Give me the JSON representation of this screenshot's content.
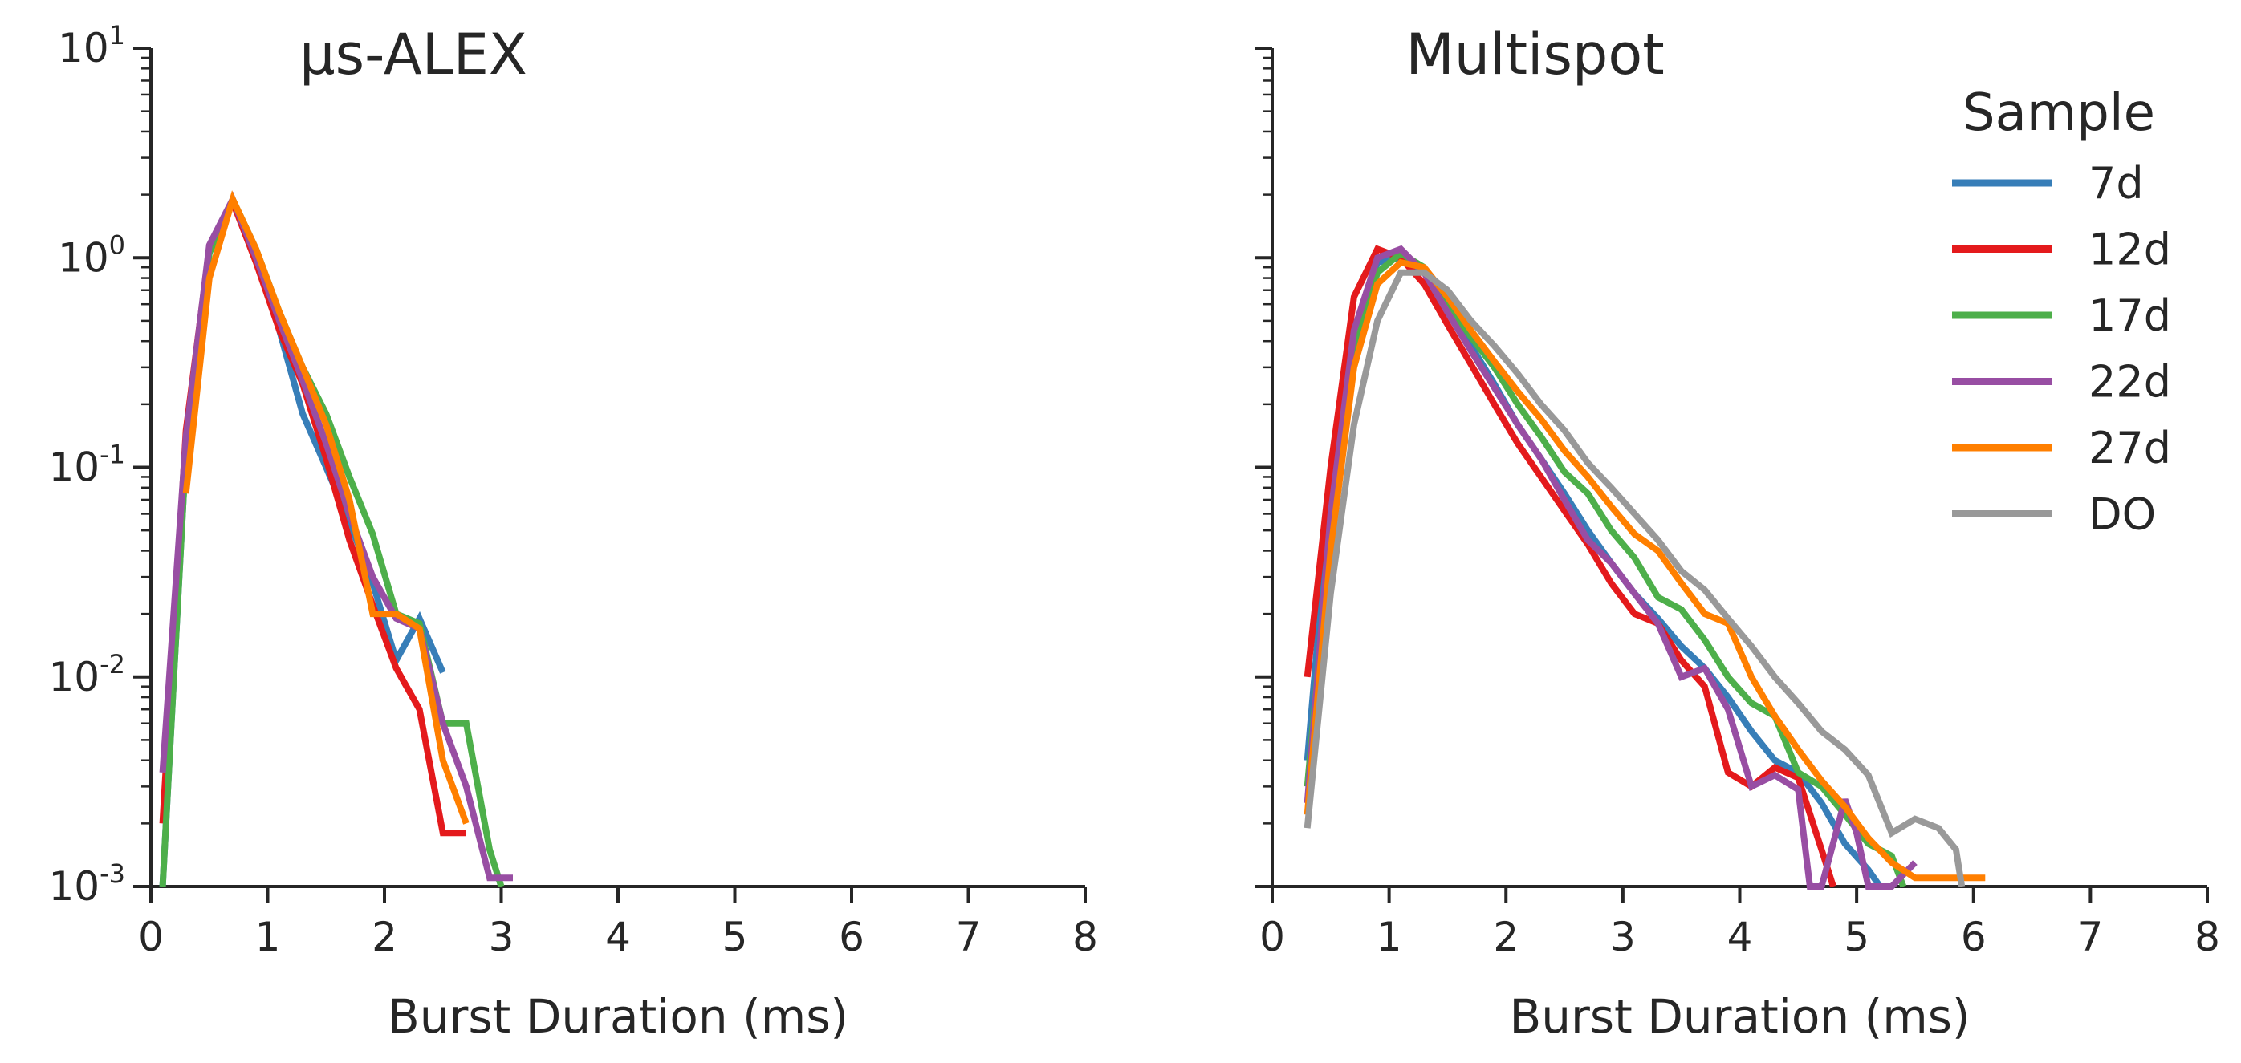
{
  "colors": {
    "7d": "#377eb8",
    "12d": "#e41a1c",
    "17d": "#4daf4a",
    "22d": "#984ea3",
    "27d": "#ff7f00",
    "DO": "#999999",
    "axis": "#262626"
  },
  "legend": {
    "title": "Sample",
    "position": "upper-right of right panel",
    "entries": [
      "7d",
      "12d",
      "17d",
      "22d",
      "27d",
      "DO"
    ]
  },
  "chart_data": [
    {
      "type": "line",
      "title": "µs-ALEX",
      "xlabel": "Burst Duration (ms)",
      "ylabel": "",
      "yscale": "log",
      "xlim": [
        0,
        8
      ],
      "ylim": [
        0.001,
        10
      ],
      "xticks": [
        "0",
        "1",
        "2",
        "3",
        "4",
        "5",
        "6",
        "7",
        "8"
      ],
      "yticks": [
        {
          "base": "10",
          "exp": "-3"
        },
        {
          "base": "10",
          "exp": "-2"
        },
        {
          "base": "10",
          "exp": "-1"
        },
        {
          "base": "10",
          "exp": "0"
        },
        {
          "base": "10",
          "exp": "1"
        }
      ],
      "series": [
        {
          "name": "7d",
          "x": [
            0.1,
            0.3,
            0.5,
            0.7,
            0.9,
            1.1,
            1.3,
            1.5,
            1.7,
            1.9,
            2.1,
            2.3,
            2.5
          ],
          "y": [
            0.001,
            0.12,
            1.1,
            1.85,
            1.0,
            0.45,
            0.18,
            0.1,
            0.055,
            0.028,
            0.012,
            0.019,
            0.0105
          ]
        },
        {
          "name": "12d",
          "x": [
            0.1,
            0.3,
            0.5,
            0.7,
            0.9,
            1.1,
            1.3,
            1.5,
            1.7,
            1.9,
            2.1,
            2.3,
            2.5,
            2.7
          ],
          "y": [
            0.002,
            0.15,
            1.1,
            1.85,
            0.95,
            0.45,
            0.25,
            0.11,
            0.045,
            0.022,
            0.011,
            0.007,
            0.0018,
            0.0018
          ]
        },
        {
          "name": "17d",
          "x": [
            0.1,
            0.3,
            0.5,
            0.7,
            0.9,
            1.1,
            1.3,
            1.5,
            1.7,
            1.9,
            2.1,
            2.3,
            2.5,
            2.7,
            2.9,
            3.0
          ],
          "y": [
            0.001,
            0.12,
            1.05,
            1.9,
            1.1,
            0.55,
            0.3,
            0.18,
            0.09,
            0.048,
            0.02,
            0.018,
            0.006,
            0.006,
            0.0015,
            0.001
          ]
        },
        {
          "name": "22d",
          "x": [
            0.1,
            0.3,
            0.5,
            0.7,
            0.9,
            1.1,
            1.3,
            1.5,
            1.7,
            1.9,
            2.1,
            2.3,
            2.5,
            2.7,
            2.9,
            3.1
          ],
          "y": [
            0.0035,
            0.14,
            1.15,
            1.9,
            1.0,
            0.5,
            0.26,
            0.13,
            0.06,
            0.03,
            0.019,
            0.017,
            0.006,
            0.003,
            0.0011,
            0.0011
          ]
        },
        {
          "name": "27d",
          "x": [
            0.3,
            0.5,
            0.7,
            0.9,
            1.1,
            1.3,
            1.5,
            1.7,
            1.9,
            2.1,
            2.3,
            2.5,
            2.7
          ],
          "y": [
            0.075,
            0.8,
            1.9,
            1.1,
            0.55,
            0.3,
            0.16,
            0.07,
            0.02,
            0.02,
            0.017,
            0.004,
            0.002
          ]
        }
      ]
    },
    {
      "type": "line",
      "title": "Multispot",
      "xlabel": "Burst Duration (ms)",
      "ylabel": "",
      "yscale": "log",
      "xlim": [
        0,
        8
      ],
      "ylim": [
        0.001,
        10
      ],
      "xticks": [
        "0",
        "1",
        "2",
        "3",
        "4",
        "5",
        "6",
        "7",
        "8"
      ],
      "yticks": [],
      "series": [
        {
          "name": "7d",
          "x": [
            0.3,
            0.5,
            0.7,
            0.9,
            1.1,
            1.3,
            1.5,
            1.7,
            1.9,
            2.1,
            2.3,
            2.5,
            2.7,
            2.9,
            3.1,
            3.3,
            3.5,
            3.7,
            3.9,
            4.1,
            4.3,
            4.5,
            4.7,
            4.9,
            5.1,
            5.2
          ],
          "y": [
            0.004,
            0.08,
            0.45,
            0.95,
            1.0,
            0.85,
            0.55,
            0.38,
            0.25,
            0.16,
            0.11,
            0.075,
            0.05,
            0.035,
            0.025,
            0.019,
            0.014,
            0.011,
            0.008,
            0.0055,
            0.004,
            0.0035,
            0.0025,
            0.0016,
            0.0012,
            0.001
          ]
        },
        {
          "name": "12d",
          "x": [
            0.3,
            0.5,
            0.7,
            0.9,
            1.1,
            1.3,
            1.5,
            1.7,
            1.9,
            2.1,
            2.3,
            2.5,
            2.7,
            2.9,
            3.1,
            3.3,
            3.5,
            3.7,
            3.9,
            4.1,
            4.3,
            4.5,
            4.7,
            4.8
          ],
          "y": [
            0.01,
            0.1,
            0.65,
            1.1,
            1.0,
            0.75,
            0.48,
            0.31,
            0.2,
            0.13,
            0.09,
            0.062,
            0.043,
            0.028,
            0.02,
            0.018,
            0.012,
            0.009,
            0.0035,
            0.003,
            0.0037,
            0.0033,
            0.0015,
            0.001
          ]
        },
        {
          "name": "17d",
          "x": [
            0.3,
            0.5,
            0.7,
            0.9,
            1.1,
            1.3,
            1.5,
            1.7,
            1.9,
            2.1,
            2.3,
            2.5,
            2.7,
            2.9,
            3.1,
            3.3,
            3.5,
            3.7,
            3.9,
            4.1,
            4.3,
            4.5,
            4.7,
            4.9,
            5.1,
            5.3,
            5.4
          ],
          "y": [
            0.003,
            0.05,
            0.35,
            0.85,
            1.05,
            0.9,
            0.6,
            0.42,
            0.3,
            0.2,
            0.14,
            0.095,
            0.075,
            0.05,
            0.037,
            0.024,
            0.021,
            0.015,
            0.01,
            0.0075,
            0.0065,
            0.0035,
            0.003,
            0.0022,
            0.0016,
            0.0014,
            0.001
          ]
        },
        {
          "name": "22d",
          "x": [
            0.3,
            0.5,
            0.7,
            0.9,
            1.1,
            1.3,
            1.5,
            1.7,
            1.9,
            2.1,
            2.3,
            2.5,
            2.7,
            2.9,
            3.1,
            3.3,
            3.5,
            3.7,
            3.9,
            4.1,
            4.3,
            4.5,
            4.6,
            4.7,
            4.9,
            5.0,
            5.1,
            5.3,
            5.5
          ],
          "y": [
            0.0025,
            0.06,
            0.45,
            1.0,
            1.1,
            0.85,
            0.55,
            0.36,
            0.24,
            0.16,
            0.11,
            0.07,
            0.045,
            0.035,
            0.025,
            0.018,
            0.01,
            0.011,
            0.007,
            0.003,
            0.0034,
            0.0029,
            0.001,
            0.001,
            0.0026,
            0.0018,
            0.001,
            0.001,
            0.0013
          ]
        },
        {
          "name": "27d",
          "x": [
            0.3,
            0.5,
            0.7,
            0.9,
            1.1,
            1.3,
            1.5,
            1.7,
            1.9,
            2.1,
            2.3,
            2.5,
            2.7,
            2.9,
            3.1,
            3.3,
            3.5,
            3.7,
            3.9,
            4.1,
            4.3,
            4.5,
            4.7,
            4.9,
            5.1,
            5.3,
            5.5,
            5.8,
            6.1
          ],
          "y": [
            0.0022,
            0.04,
            0.3,
            0.75,
            0.95,
            0.9,
            0.65,
            0.45,
            0.32,
            0.23,
            0.17,
            0.12,
            0.09,
            0.065,
            0.048,
            0.04,
            0.028,
            0.02,
            0.018,
            0.01,
            0.0065,
            0.0045,
            0.0032,
            0.0024,
            0.0017,
            0.0013,
            0.0011,
            0.0011,
            0.0011
          ]
        },
        {
          "name": "DO",
          "x": [
            0.3,
            0.5,
            0.7,
            0.9,
            1.1,
            1.3,
            1.5,
            1.7,
            1.9,
            2.1,
            2.3,
            2.5,
            2.7,
            2.9,
            3.1,
            3.3,
            3.5,
            3.7,
            3.9,
            4.1,
            4.3,
            4.5,
            4.7,
            4.9,
            5.1,
            5.3,
            5.5,
            5.7,
            5.85,
            5.9
          ],
          "y": [
            0.0019,
            0.025,
            0.16,
            0.5,
            0.85,
            0.85,
            0.7,
            0.5,
            0.38,
            0.28,
            0.2,
            0.15,
            0.105,
            0.08,
            0.06,
            0.045,
            0.032,
            0.026,
            0.019,
            0.014,
            0.01,
            0.0075,
            0.0055,
            0.0045,
            0.0034,
            0.0018,
            0.0021,
            0.0019,
            0.0015,
            0.001
          ]
        }
      ]
    }
  ]
}
